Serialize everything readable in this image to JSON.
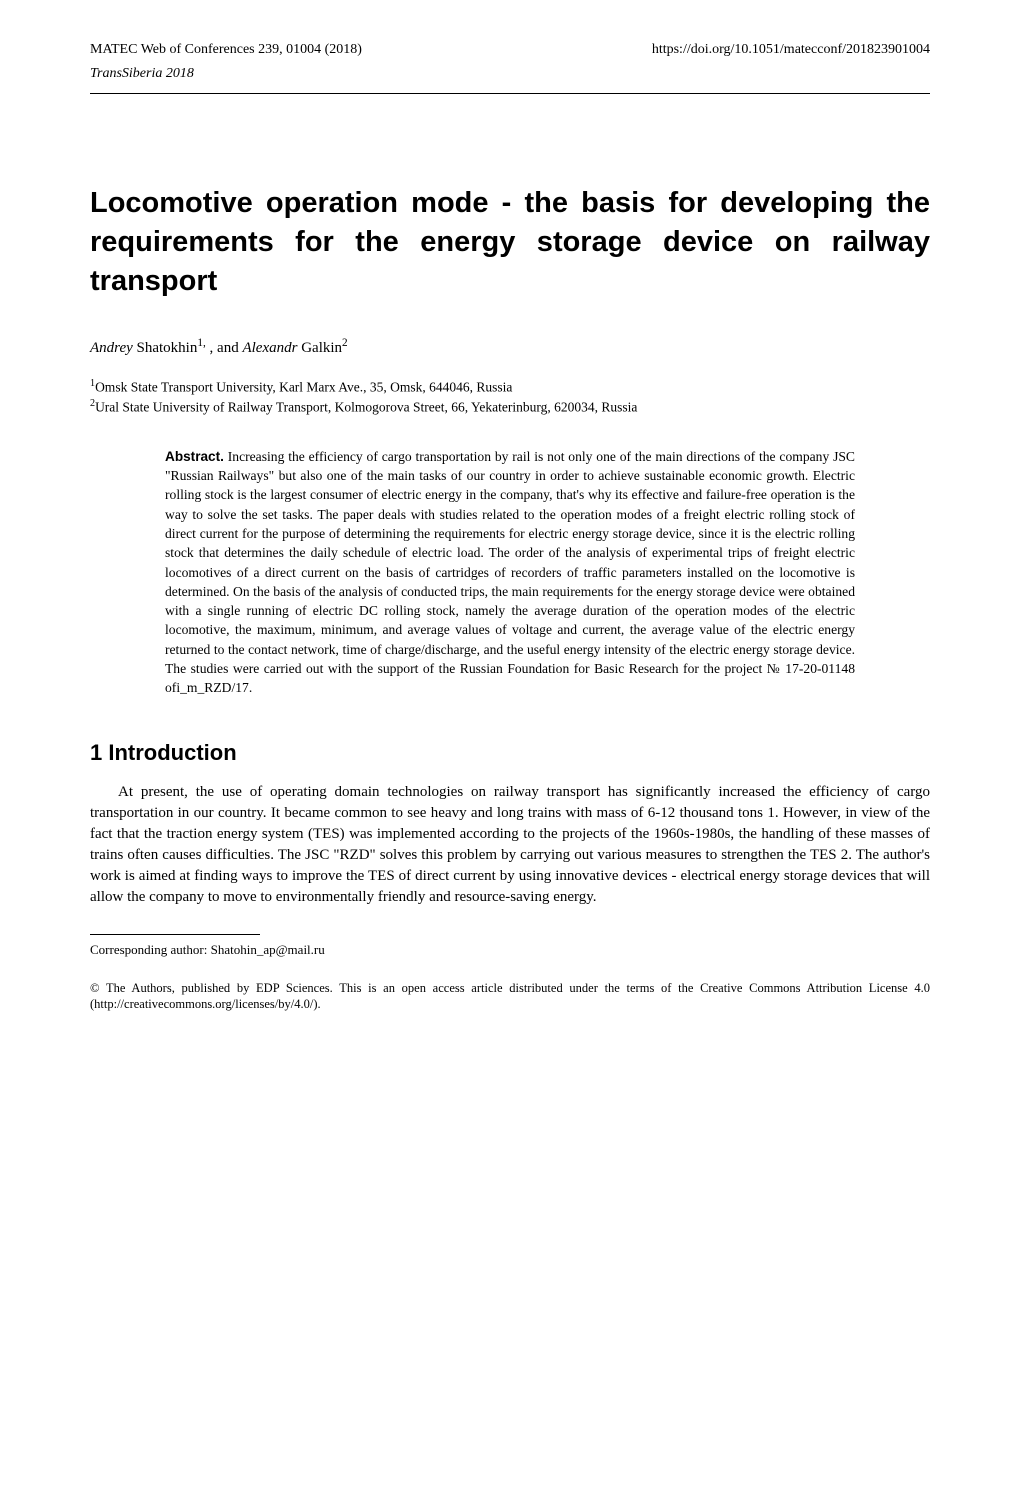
{
  "header": {
    "left": "MATEC Web of Conferences 239, 01004 (2018)",
    "right": "https://doi.org/10.1051/matecconf/201823901004",
    "sub": "TransSiberia 2018"
  },
  "title": "Locomotive operation mode - the basis for developing the requirements for the energy storage device on railway transport",
  "authors": {
    "a1_first": "Andrey",
    "a1_last": " Shatokhin",
    "a1_sup": "1,",
    "sep": " , and ",
    "a2_first": "Alexandr",
    "a2_last": " Galkin",
    "a2_sup": "2"
  },
  "affiliations": {
    "l1": "1",
    "t1": "Omsk State Transport University, Karl Marx Ave., 35, Omsk, 644046, Russia",
    "l2": "2",
    "t2": "Ural State University of Railway Transport, Kolmogorova Street, 66, Yekaterinburg, 620034, Russia"
  },
  "abstract": {
    "label": "Abstract.",
    "text": " Increasing the efficiency of cargo transportation by rail is not only one of the main directions of the company JSC \"Russian Railways\" but also one of the main tasks of our country in order to achieve sustainable economic growth. Electric rolling stock is the largest consumer of electric energy in the company, that's why its effective and failure-free operation is the way to solve the set tasks. The paper deals with studies related to the operation modes of a freight electric rolling stock of direct current for the purpose of determining the requirements for electric energy storage device, since it is the electric rolling stock that determines the daily schedule of electric load. The order of the analysis of experimental trips of freight electric locomotives of a direct current on the basis of cartridges of recorders of traffic parameters installed on the locomotive is determined. On the basis of the analysis of conducted trips, the main requirements for the energy storage device were obtained with a single running of electric DC rolling stock, namely the average duration of the operation modes of the electric locomotive, the maximum, minimum, and average values of voltage and current, the average value of the electric energy returned to the contact network, time of charge/discharge, and the useful energy intensity of the electric energy storage device. The studies were carried out with the support of the Russian Foundation for Basic Research for the project № 17-20-01148 ofi_m_RZD/17."
  },
  "section1": {
    "heading": "1 Introduction",
    "p1a": "At present, the use of operating domain technologies on railway transport has significantly increased the efficiency of cargo transportation in our country. It became common to see heavy and long trains with mass of 6-12 thousand tons ",
    "ref1": "1",
    "p1b": ". However, in view of the fact that the traction energy system (TES) was implemented according to the projects of the 1960s-1980s, the handling of these masses of trains often causes difficulties. The JSC \"RZD\" solves this problem by carrying out various measures to strengthen the TES ",
    "ref2": "2",
    "p1c": ". The author's work is aimed at finding ways to improve the TES of direct current by using innovative devices - electrical energy storage devices that will allow the company to move to environmentally friendly and resource-saving energy."
  },
  "footnote": {
    "text": "Corresponding author: Shatohin_ap@mail.ru"
  },
  "license": {
    "text": "© The Authors, published by EDP Sciences. This is an open access article distributed under the terms of the Creative Commons Attribution License 4.0 (http://creativecommons.org/licenses/by/4.0/)."
  }
}
